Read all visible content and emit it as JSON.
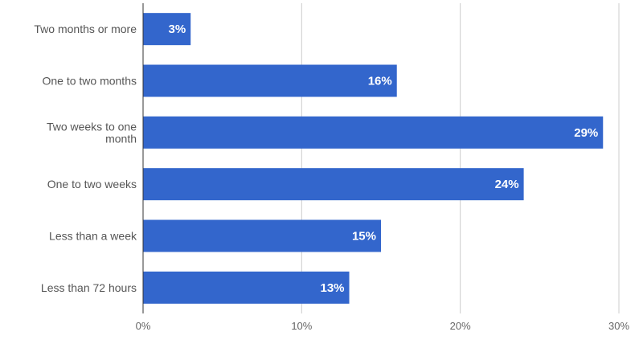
{
  "chart_data": {
    "type": "bar",
    "orientation": "horizontal",
    "title": "",
    "xlabel": "",
    "ylabel": "",
    "categories": [
      "Two months or more",
      "One to two months",
      "Two weeks to one month",
      "One to two weeks",
      "Less than a week",
      "Less than 72 hours"
    ],
    "values": [
      3,
      16,
      29,
      24,
      15,
      13
    ],
    "data_labels": [
      "3%",
      "16%",
      "29%",
      "24%",
      "15%",
      "13%"
    ],
    "xlim": [
      0,
      30
    ],
    "x_ticks": [
      0,
      10,
      20,
      30
    ],
    "x_tick_labels": [
      "0%",
      "10%",
      "20%",
      "30%"
    ],
    "grid": "vertical",
    "legend": "none",
    "colors": {
      "bar": "#3366cc",
      "grid": "#cccccc",
      "axis": "#333333"
    }
  }
}
